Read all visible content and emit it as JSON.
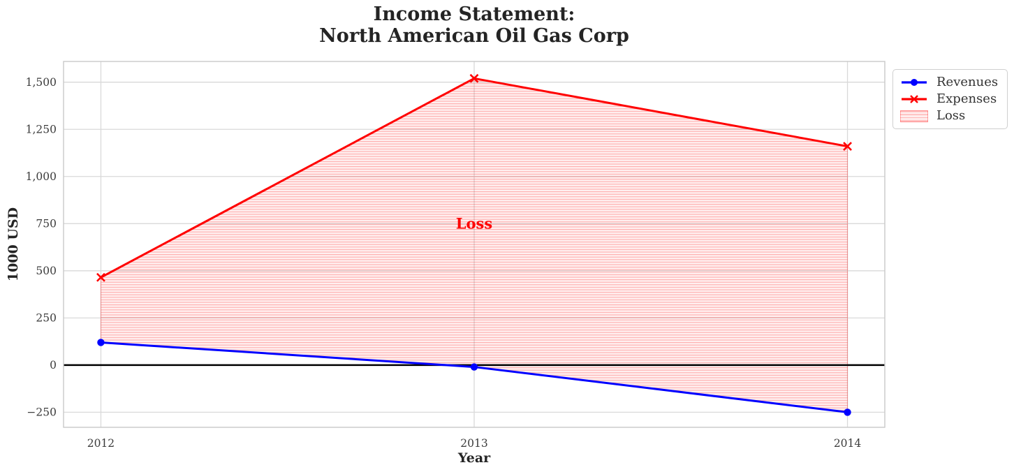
{
  "chart_data": {
    "type": "line",
    "title": "Income Statement:\nNorth American Oil Gas Corp",
    "xlabel": "Year",
    "ylabel": "1000 USD",
    "x": [
      2012,
      2013,
      2014
    ],
    "x_tick_labels": [
      "2012",
      "2013",
      "2014"
    ],
    "series": [
      {
        "name": "Revenues",
        "values": [
          120,
          -10,
          -250
        ],
        "color": "#0000ff",
        "marker": "circle",
        "linewidth": 3
      },
      {
        "name": "Expenses",
        "values": [
          465,
          1520,
          1160
        ],
        "color": "#ff0000",
        "marker": "x",
        "linewidth": 3
      }
    ],
    "fill_between": {
      "label": "Loss",
      "upper_series": "Expenses",
      "lower_series": "Revenues",
      "facecolor": "rgba(255,0,0,0.06)",
      "hatch": "-",
      "hatch_color": "rgba(255,0,0,0.28)",
      "edge_color": "rgba(255,0,0,0.3)"
    },
    "annotation": {
      "text": "Loss",
      "x": 2013,
      "y": 750,
      "color": "#ff0000"
    },
    "zero_line": {
      "y": 0,
      "color": "#000000"
    },
    "y_ticks": [
      -250,
      0,
      250,
      500,
      750,
      1000,
      1250,
      1500
    ],
    "y_tick_labels": [
      "−250",
      "0",
      "250",
      "500",
      "750",
      "1,000",
      "1,250",
      "1,500"
    ],
    "xlim": [
      2011.9,
      2014.1
    ],
    "ylim": [
      -330,
      1610
    ],
    "grid": true,
    "grid_color": "#d9d9d9",
    "spine_color": "#c9c9c9",
    "legend": {
      "position": "upper-right-outside",
      "items": [
        {
          "label": "Revenues"
        },
        {
          "label": "Expenses"
        },
        {
          "label": "Loss"
        }
      ]
    }
  }
}
